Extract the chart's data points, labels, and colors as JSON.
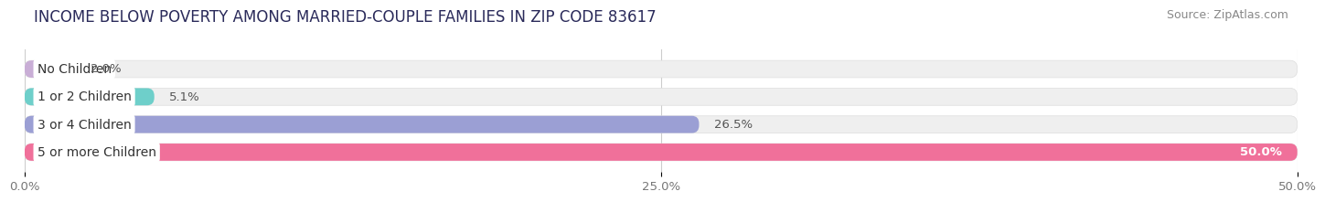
{
  "title": "INCOME BELOW POVERTY AMONG MARRIED-COUPLE FAMILIES IN ZIP CODE 83617",
  "source": "Source: ZipAtlas.com",
  "categories": [
    "No Children",
    "1 or 2 Children",
    "3 or 4 Children",
    "5 or more Children"
  ],
  "values": [
    2.0,
    5.1,
    26.5,
    50.0
  ],
  "bar_colors": [
    "#c9aed6",
    "#6ecfca",
    "#9b9fd4",
    "#f0709a"
  ],
  "bar_bg_color": "#efefef",
  "xlim": [
    0,
    50
  ],
  "xticks": [
    0.0,
    25.0,
    50.0
  ],
  "xtick_labels": [
    "0.0%",
    "25.0%",
    "50.0%"
  ],
  "title_fontsize": 12,
  "label_fontsize": 10,
  "value_fontsize": 9.5,
  "source_fontsize": 9,
  "bar_height": 0.62,
  "background_color": "#ffffff",
  "label_bg_color": "#ffffff",
  "value_inside_index": 3,
  "grid_color": "#cccccc"
}
